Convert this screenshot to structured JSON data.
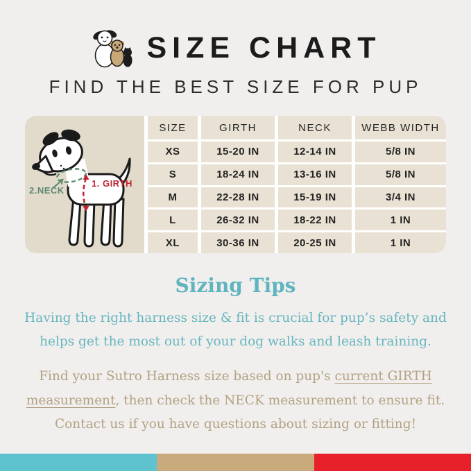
{
  "header": {
    "title": "SIZE CHART",
    "subtitle": "FIND THE BEST SIZE FOR PUP",
    "icon": "dogs-trio-icon"
  },
  "diagram": {
    "girth_label": "1. GIRTH",
    "neck_label": "2.NECK",
    "girth_color": "#bf2430",
    "neck_color": "#5d8a70"
  },
  "table": {
    "headers": [
      "SIZE",
      "GIRTH",
      "NECK",
      "WEBB WIDTH"
    ],
    "rows": [
      [
        "XS",
        "15-20 IN",
        "12-14 IN",
        "5/8 IN"
      ],
      [
        "S",
        "18-24 IN",
        "13-16 IN",
        "5/8 IN"
      ],
      [
        "M",
        "22-28 IN",
        "15-19 IN",
        "3/4 IN"
      ],
      [
        "L",
        "26-32 IN",
        "18-22 IN",
        "1 IN"
      ],
      [
        "XL",
        "30-36 IN",
        "20-25 IN",
        "1 IN"
      ]
    ]
  },
  "tips": {
    "heading": "Sizing Tips",
    "paragraph1": "Having the right harness size & fit is crucial for pup’s safety and helps get the most out of your dog walks and leash training.",
    "paragraph2_segments": [
      {
        "text": "Find your Sutro Harness size based on pup's ",
        "underline": false
      },
      {
        "text": "current GIRTH measurement",
        "underline": true
      },
      {
        "text": ", then check the NECK measurement to ensure fit. Contact us if you have questions about sizing or fitting!",
        "underline": false
      }
    ]
  },
  "footer_stripe": {
    "colors": [
      "#5ec3cf",
      "#c9aa7d",
      "#e8202a"
    ]
  },
  "theme": {
    "page_bg": "#f0efed",
    "panel_bg": "#e2dbcc",
    "cell_bg": "#e9e2d4",
    "teal": "#68b6c0",
    "tan": "#b3a183",
    "title_color": "#1b1b1b"
  }
}
